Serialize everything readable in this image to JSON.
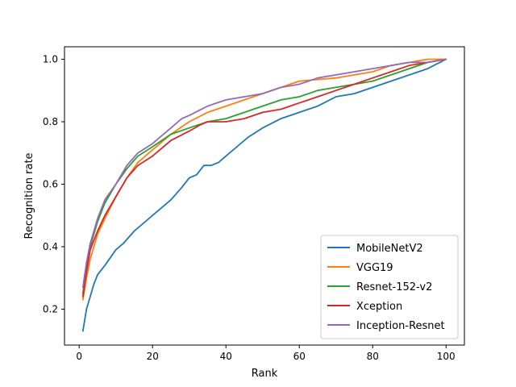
{
  "chart_data": {
    "type": "line",
    "title": "",
    "xlabel": "Rank",
    "ylabel": "Recognition rate",
    "xlim": [
      -4,
      105
    ],
    "ylim": [
      0.085,
      1.04
    ],
    "x_ticks": [
      0,
      20,
      40,
      60,
      80,
      100
    ],
    "x_tick_labels": [
      "0",
      "20",
      "40",
      "60",
      "80",
      "100"
    ],
    "y_ticks": [
      0.2,
      0.4,
      0.6,
      0.8,
      1.0
    ],
    "y_tick_labels": [
      "0.2",
      "0.4",
      "0.6",
      "0.8",
      "1.0"
    ],
    "grid": false,
    "legend_position": "lower-right",
    "series": [
      {
        "name": "MobileNetV2",
        "color": "#1f77b4",
        "points": [
          [
            1,
            0.13
          ],
          [
            2,
            0.2
          ],
          [
            3,
            0.24
          ],
          [
            4,
            0.28
          ],
          [
            5,
            0.31
          ],
          [
            7,
            0.34
          ],
          [
            10,
            0.39
          ],
          [
            12,
            0.41
          ],
          [
            15,
            0.45
          ],
          [
            18,
            0.48
          ],
          [
            20,
            0.5
          ],
          [
            25,
            0.55
          ],
          [
            28,
            0.59
          ],
          [
            30,
            0.62
          ],
          [
            32,
            0.63
          ],
          [
            34,
            0.66
          ],
          [
            36,
            0.66
          ],
          [
            38,
            0.67
          ],
          [
            40,
            0.69
          ],
          [
            43,
            0.72
          ],
          [
            46,
            0.75
          ],
          [
            50,
            0.78
          ],
          [
            55,
            0.81
          ],
          [
            60,
            0.83
          ],
          [
            65,
            0.85
          ],
          [
            70,
            0.88
          ],
          [
            75,
            0.89
          ],
          [
            80,
            0.91
          ],
          [
            85,
            0.93
          ],
          [
            90,
            0.95
          ],
          [
            95,
            0.97
          ],
          [
            100,
            1.0
          ]
        ]
      },
      {
        "name": "VGG19",
        "color": "#ff7f0e",
        "points": [
          [
            1,
            0.23
          ],
          [
            2,
            0.3
          ],
          [
            3,
            0.36
          ],
          [
            5,
            0.44
          ],
          [
            7,
            0.49
          ],
          [
            10,
            0.56
          ],
          [
            13,
            0.62
          ],
          [
            16,
            0.67
          ],
          [
            20,
            0.71
          ],
          [
            25,
            0.76
          ],
          [
            30,
            0.8
          ],
          [
            35,
            0.83
          ],
          [
            40,
            0.85
          ],
          [
            45,
            0.87
          ],
          [
            50,
            0.89
          ],
          [
            55,
            0.91
          ],
          [
            60,
            0.93
          ],
          [
            70,
            0.94
          ],
          [
            80,
            0.96
          ],
          [
            85,
            0.98
          ],
          [
            90,
            0.99
          ],
          [
            95,
            1.0
          ],
          [
            100,
            1.0
          ]
        ]
      },
      {
        "name": "Resnet-152-v2",
        "color": "#2ca02c",
        "points": [
          [
            1,
            0.25
          ],
          [
            2,
            0.33
          ],
          [
            3,
            0.4
          ],
          [
            5,
            0.48
          ],
          [
            7,
            0.54
          ],
          [
            10,
            0.6
          ],
          [
            13,
            0.65
          ],
          [
            16,
            0.69
          ],
          [
            20,
            0.72
          ],
          [
            25,
            0.76
          ],
          [
            30,
            0.78
          ],
          [
            35,
            0.8
          ],
          [
            40,
            0.81
          ],
          [
            45,
            0.83
          ],
          [
            50,
            0.85
          ],
          [
            55,
            0.87
          ],
          [
            60,
            0.88
          ],
          [
            65,
            0.9
          ],
          [
            70,
            0.91
          ],
          [
            75,
            0.92
          ],
          [
            80,
            0.93
          ],
          [
            85,
            0.95
          ],
          [
            90,
            0.97
          ],
          [
            95,
            0.99
          ],
          [
            100,
            1.0
          ]
        ]
      },
      {
        "name": "Xception",
        "color": "#d62728",
        "points": [
          [
            1,
            0.24
          ],
          [
            2,
            0.32
          ],
          [
            3,
            0.39
          ],
          [
            5,
            0.45
          ],
          [
            7,
            0.5
          ],
          [
            8,
            0.52
          ],
          [
            10,
            0.56
          ],
          [
            13,
            0.62
          ],
          [
            16,
            0.66
          ],
          [
            20,
            0.69
          ],
          [
            25,
            0.74
          ],
          [
            30,
            0.77
          ],
          [
            33,
            0.79
          ],
          [
            35,
            0.8
          ],
          [
            40,
            0.8
          ],
          [
            45,
            0.81
          ],
          [
            50,
            0.83
          ],
          [
            55,
            0.84
          ],
          [
            60,
            0.86
          ],
          [
            65,
            0.88
          ],
          [
            70,
            0.9
          ],
          [
            75,
            0.92
          ],
          [
            80,
            0.94
          ],
          [
            85,
            0.96
          ],
          [
            90,
            0.98
          ],
          [
            95,
            0.99
          ],
          [
            100,
            1.0
          ]
        ]
      },
      {
        "name": "Inception-Resnet",
        "color": "#9467bd",
        "points": [
          [
            1,
            0.27
          ],
          [
            2,
            0.35
          ],
          [
            3,
            0.41
          ],
          [
            5,
            0.49
          ],
          [
            7,
            0.55
          ],
          [
            10,
            0.6
          ],
          [
            13,
            0.66
          ],
          [
            16,
            0.7
          ],
          [
            20,
            0.73
          ],
          [
            25,
            0.78
          ],
          [
            28,
            0.81
          ],
          [
            30,
            0.82
          ],
          [
            35,
            0.85
          ],
          [
            40,
            0.87
          ],
          [
            45,
            0.88
          ],
          [
            50,
            0.89
          ],
          [
            55,
            0.91
          ],
          [
            60,
            0.92
          ],
          [
            65,
            0.94
          ],
          [
            70,
            0.95
          ],
          [
            75,
            0.96
          ],
          [
            80,
            0.97
          ],
          [
            85,
            0.98
          ],
          [
            90,
            0.99
          ],
          [
            95,
            0.99
          ],
          [
            100,
            1.0
          ]
        ]
      }
    ]
  }
}
